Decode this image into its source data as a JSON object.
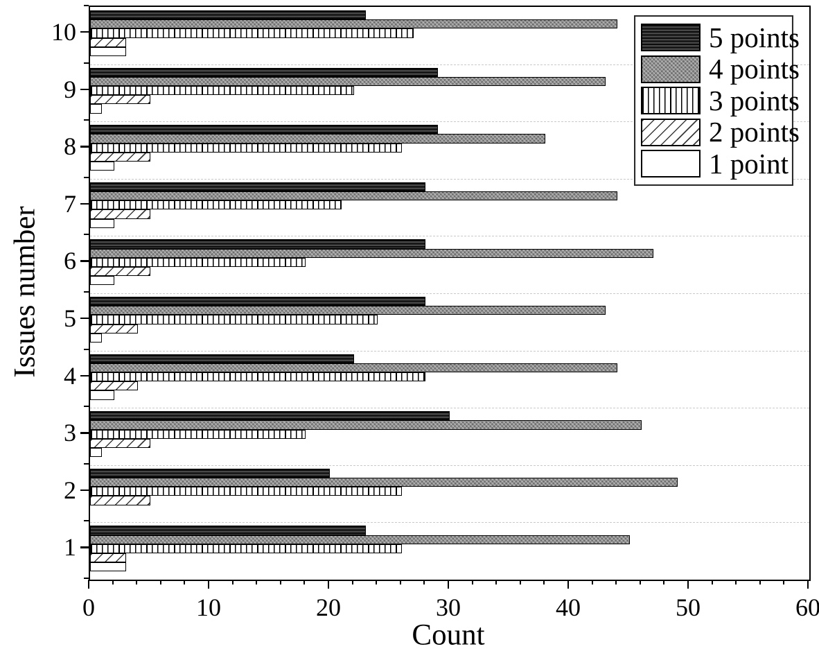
{
  "figure": {
    "background": "#ffffff",
    "text_color": "#000000",
    "plot_border_color": "#000000",
    "gridline_color": "#c9c9c9",
    "gridline_style": "dashed"
  },
  "chart_data": {
    "type": "bar",
    "orientation": "horizontal",
    "title": "",
    "xlabel": "Count",
    "ylabel": "Issues number",
    "xlim": [
      0,
      60
    ],
    "x_major_ticks": [
      0,
      10,
      20,
      30,
      40,
      50,
      60
    ],
    "x_major_tick_labels": [
      "0",
      "10",
      "20",
      "30",
      "40",
      "50",
      "60"
    ],
    "x_minor_tick_step": 2,
    "grid": "horizontal dashed lines between category groups",
    "categories": [
      "1",
      "2",
      "3",
      "4",
      "5",
      "6",
      "7",
      "8",
      "9",
      "10"
    ],
    "category_axis_order_top_to_bottom": [
      "10",
      "9",
      "8",
      "7",
      "6",
      "5",
      "4",
      "3",
      "2",
      "1"
    ],
    "series": [
      {
        "name": "5 points",
        "pattern": "dark-horizontal-stripes",
        "fill": "#1a1a1a",
        "values": [
          23,
          20,
          30,
          22,
          28,
          28,
          28,
          29,
          29,
          23
        ]
      },
      {
        "name": "4 points",
        "pattern": "gray-dot-weave",
        "fill": "#8f8f8f",
        "values": [
          45,
          49,
          46,
          44,
          43,
          47,
          44,
          38,
          43,
          44
        ]
      },
      {
        "name": "3 points",
        "pattern": "white-vertical-lines",
        "fill": "#ffffff",
        "values": [
          26,
          26,
          18,
          28,
          24,
          18,
          21,
          26,
          22,
          27
        ]
      },
      {
        "name": "2 points",
        "pattern": "white-diagonal-hatch",
        "fill": "#ffffff",
        "values": [
          3,
          5,
          5,
          4,
          4,
          5,
          5,
          5,
          5,
          3
        ]
      },
      {
        "name": "1 point",
        "pattern": "plain-white",
        "fill": "#ffffff",
        "values": [
          3,
          0,
          1,
          2,
          1,
          2,
          2,
          2,
          1,
          3
        ]
      }
    ],
    "legend": {
      "position": "top-right",
      "entries": [
        "5 points",
        "4 points",
        "3 points",
        "2 points",
        "1 point"
      ]
    }
  }
}
